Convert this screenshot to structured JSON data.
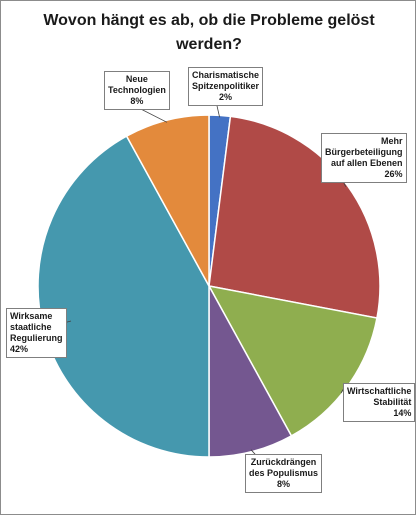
{
  "chart_data": {
    "type": "pie",
    "title_lines": [
      "Wovon hängt es ab, ob die Probleme gelöst",
      "werden?"
    ],
    "slices": [
      {
        "label_lines": [
          "Charismatische",
          "Spitzenpolitiker"
        ],
        "value": 2,
        "value_label": "2%",
        "color": "#4472c4"
      },
      {
        "label_lines": [
          "Mehr",
          "Bürgerbeteiligung",
          "auf allen Ebenen"
        ],
        "value": 26,
        "value_label": "26%",
        "color": "#b04a47"
      },
      {
        "label_lines": [
          "Wirtschaftliche",
          "Stabilität"
        ],
        "value": 14,
        "value_label": "14%",
        "color": "#8fae4f"
      },
      {
        "label_lines": [
          "Zurückdrängen",
          "des Populismus"
        ],
        "value": 8,
        "value_label": "8%",
        "color": "#745790"
      },
      {
        "label_lines": [
          "Wirksame",
          "staatliche",
          "Regulierung"
        ],
        "value": 42,
        "value_label": "42%",
        "color": "#4598ae"
      },
      {
        "label_lines": [
          "Neue",
          "Technologien"
        ],
        "value": 8,
        "value_label": "8%",
        "color": "#e38a3c"
      }
    ],
    "start_angle": "12 o'clock",
    "direction": "clockwise",
    "legend": "none",
    "data_labels": "outside with leader lines"
  }
}
